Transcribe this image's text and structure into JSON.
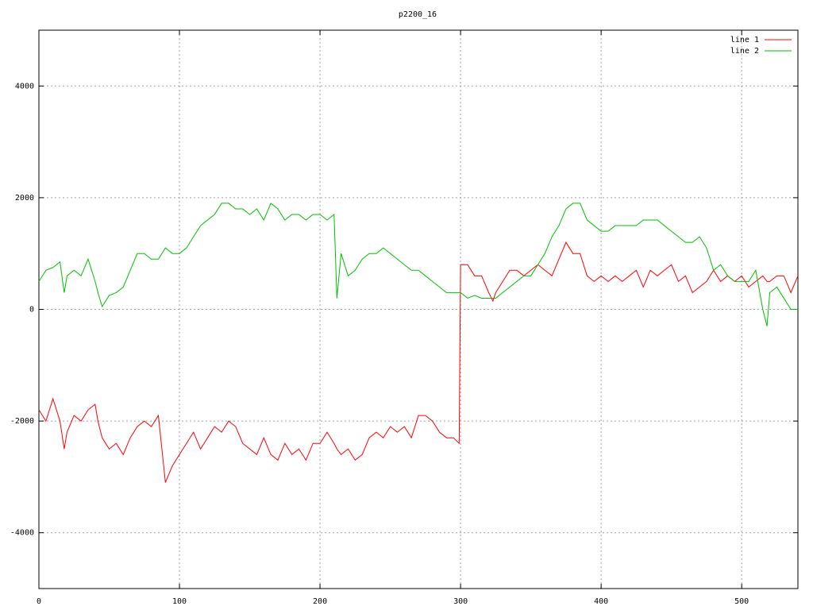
{
  "chart_data": {
    "type": "line",
    "title": "p2200_16",
    "x": [
      0,
      5,
      10,
      15,
      18,
      20,
      25,
      30,
      35,
      40,
      42,
      45,
      50,
      55,
      60,
      65,
      70,
      75,
      80,
      85,
      90,
      95,
      100,
      105,
      110,
      115,
      120,
      125,
      130,
      135,
      140,
      145,
      150,
      155,
      160,
      165,
      170,
      175,
      180,
      185,
      190,
      195,
      200,
      205,
      210,
      212,
      215,
      220,
      225,
      230,
      235,
      240,
      245,
      250,
      255,
      260,
      265,
      270,
      275,
      280,
      285,
      290,
      295,
      299,
      300,
      305,
      310,
      315,
      320,
      323,
      325,
      330,
      335,
      340,
      345,
      350,
      355,
      360,
      365,
      370,
      375,
      380,
      385,
      390,
      395,
      400,
      405,
      410,
      415,
      420,
      425,
      430,
      435,
      440,
      445,
      450,
      455,
      460,
      465,
      470,
      475,
      480,
      485,
      490,
      495,
      500,
      505,
      510,
      515,
      518,
      520,
      525,
      530,
      535,
      540
    ],
    "series": [
      {
        "name": "line 1",
        "color": "#ff0000",
        "values": [
          -1800,
          -2000,
          -1600,
          -2000,
          -2500,
          -2200,
          -1900,
          -2000,
          -1800,
          -1700,
          -2000,
          -2300,
          -2500,
          -2400,
          -2600,
          -2300,
          -2100,
          -2000,
          -2100,
          -1900,
          -3100,
          -2800,
          -2600,
          -2400,
          -2200,
          -2500,
          -2300,
          -2100,
          -2200,
          -2000,
          -2100,
          -2400,
          -2500,
          -2600,
          -2300,
          -2600,
          -2700,
          -2400,
          -2600,
          -2500,
          -2700,
          -2400,
          -2400,
          -2200,
          -2400,
          -2500,
          -2600,
          -2500,
          -2700,
          -2600,
          -2300,
          -2200,
          -2300,
          -2100,
          -2200,
          -2100,
          -2300,
          -1900,
          -1900,
          -2000,
          -2200,
          -2300,
          -2300,
          -2400,
          800,
          800,
          600,
          600,
          300,
          150,
          300,
          500,
          700,
          700,
          600,
          700,
          800,
          700,
          600,
          900,
          1200,
          1000,
          1000,
          600,
          500,
          600,
          500,
          600,
          500,
          600,
          700,
          400,
          700,
          600,
          700,
          800,
          500,
          600,
          300,
          400,
          500,
          700,
          500,
          600,
          500,
          600,
          400,
          500,
          600,
          500,
          500,
          600,
          600,
          300,
          600
        ]
      },
      {
        "name": "line 2",
        "color": "#00c000",
        "values": [
          500,
          700,
          750,
          850,
          300,
          600,
          700,
          600,
          900,
          500,
          300,
          50,
          250,
          300,
          400,
          700,
          1000,
          1000,
          900,
          900,
          1100,
          1000,
          1000,
          1100,
          1300,
          1500,
          1600,
          1700,
          1900,
          1900,
          1800,
          1800,
          1700,
          1800,
          1600,
          1900,
          1800,
          1600,
          1700,
          1700,
          1600,
          1700,
          1700,
          1600,
          1700,
          200,
          1000,
          600,
          700,
          900,
          1000,
          1000,
          1100,
          1000,
          900,
          800,
          700,
          700,
          600,
          500,
          400,
          300,
          300,
          300,
          300,
          200,
          250,
          200,
          200,
          200,
          200,
          300,
          400,
          500,
          600,
          600,
          800,
          1000,
          1300,
          1500,
          1800,
          1900,
          1900,
          1600,
          1500,
          1400,
          1400,
          1500,
          1500,
          1500,
          1500,
          1600,
          1600,
          1600,
          1500,
          1400,
          1300,
          1200,
          1200,
          1300,
          1100,
          700,
          800,
          600,
          500,
          500,
          500,
          700,
          0,
          -300,
          300,
          400,
          200,
          0,
          0
        ]
      }
    ],
    "xlim": [
      0,
      540
    ],
    "ylim": [
      -5000,
      5000
    ],
    "xticks": [
      0,
      100,
      200,
      300,
      400,
      500
    ],
    "yticks": [
      -4000,
      -2000,
      0,
      2000,
      4000
    ],
    "grid": true,
    "legend": "top-right"
  }
}
